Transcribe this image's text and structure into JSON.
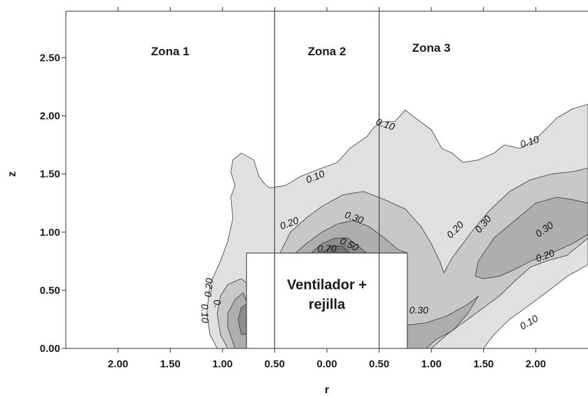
{
  "chart_data": {
    "type": "contour",
    "xlabel": "r",
    "ylabel": "z",
    "xlim": [
      -2.5,
      2.5
    ],
    "ylim": [
      0.0,
      2.9
    ],
    "x_ticks": [
      {
        "value": -2.0,
        "label": "2.00"
      },
      {
        "value": -1.5,
        "label": "1.50"
      },
      {
        "value": -1.0,
        "label": "1.00"
      },
      {
        "value": -0.5,
        "label": "0.50"
      },
      {
        "value": 0.0,
        "label": "0.00"
      },
      {
        "value": 0.5,
        "label": "0.50"
      },
      {
        "value": 1.0,
        "label": "1.00"
      },
      {
        "value": 1.5,
        "label": "1.50"
      },
      {
        "value": 2.0,
        "label": "2.00"
      }
    ],
    "y_ticks": [
      {
        "value": 0.0,
        "label": "0.00"
      },
      {
        "value": 0.5,
        "label": "0.50"
      },
      {
        "value": 1.0,
        "label": "1.00"
      },
      {
        "value": 1.5,
        "label": "1.50"
      },
      {
        "value": 2.0,
        "label": "2.00"
      },
      {
        "value": 2.5,
        "label": "2.50"
      }
    ],
    "zones": [
      {
        "label": "Zona 1",
        "x": -1.5,
        "y": 2.52
      },
      {
        "label": "Zona 2",
        "x": 0.0,
        "y": 2.52
      },
      {
        "label": "Zona 3",
        "x": 1.0,
        "y": 2.55
      }
    ],
    "zone_dividers": [
      -0.5,
      0.5
    ],
    "box": {
      "x0": -0.77,
      "x1": 0.77,
      "y0": 0.0,
      "y1": 0.82,
      "lines": [
        "Ventilador +",
        "rejilla"
      ]
    },
    "contour_levels": [
      {
        "level": 0.1,
        "fill": "#e0e0e0",
        "polygons": [
          [
            [
              -1.05,
              0.0
            ],
            [
              -1.12,
              0.12
            ],
            [
              -1.15,
              0.3
            ],
            [
              -1.12,
              0.55
            ],
            [
              -1.02,
              0.75
            ],
            [
              -0.95,
              0.92
            ],
            [
              -0.9,
              1.12
            ],
            [
              -0.92,
              1.3
            ],
            [
              -0.88,
              1.4
            ],
            [
              -0.92,
              1.52
            ],
            [
              -0.9,
              1.62
            ],
            [
              -0.82,
              1.68
            ],
            [
              -0.7,
              1.62
            ],
            [
              -0.65,
              1.48
            ],
            [
              -0.6,
              1.42
            ],
            [
              -0.55,
              1.38
            ],
            [
              -0.4,
              1.4
            ],
            [
              -0.25,
              1.48
            ],
            [
              -0.05,
              1.55
            ],
            [
              0.1,
              1.6
            ],
            [
              0.22,
              1.72
            ],
            [
              0.38,
              1.82
            ],
            [
              0.45,
              1.9
            ],
            [
              0.52,
              1.95
            ],
            [
              0.65,
              1.95
            ],
            [
              0.75,
              2.05
            ],
            [
              0.85,
              1.98
            ],
            [
              1.0,
              1.88
            ],
            [
              1.1,
              1.72
            ],
            [
              1.2,
              1.68
            ],
            [
              1.3,
              1.6
            ],
            [
              1.45,
              1.62
            ],
            [
              1.6,
              1.68
            ],
            [
              1.7,
              1.75
            ],
            [
              1.85,
              1.72
            ],
            [
              2.0,
              1.8
            ],
            [
              2.2,
              1.98
            ],
            [
              2.35,
              2.06
            ],
            [
              2.5,
              2.1
            ],
            [
              2.5,
              0.72
            ],
            [
              2.3,
              0.62
            ],
            [
              2.1,
              0.48
            ],
            [
              1.95,
              0.38
            ],
            [
              1.75,
              0.25
            ],
            [
              1.6,
              0.12
            ],
            [
              1.5,
              0.0
            ]
          ]
        ]
      },
      {
        "level": 0.2,
        "fill": "#c8c8c8",
        "polygons": [
          [
            [
              -0.95,
              0.0
            ],
            [
              -1.02,
              0.12
            ],
            [
              -1.05,
              0.3
            ],
            [
              -1.02,
              0.45
            ],
            [
              -0.95,
              0.55
            ],
            [
              -0.82,
              0.6
            ],
            [
              -0.75,
              0.55
            ],
            [
              -0.78,
              0.4
            ],
            [
              -0.78,
              0.0
            ]
          ],
          [
            [
              -0.45,
              0.82
            ],
            [
              -0.35,
              1.0
            ],
            [
              -0.2,
              1.12
            ],
            [
              -0.05,
              1.22
            ],
            [
              0.15,
              1.32
            ],
            [
              0.35,
              1.35
            ],
            [
              0.55,
              1.28
            ],
            [
              0.75,
              1.2
            ],
            [
              0.9,
              1.05
            ],
            [
              1.0,
              0.9
            ],
            [
              1.08,
              0.75
            ],
            [
              1.12,
              0.65
            ],
            [
              1.2,
              0.78
            ],
            [
              1.3,
              0.9
            ],
            [
              1.4,
              1.02
            ],
            [
              1.55,
              1.18
            ],
            [
              1.75,
              1.35
            ],
            [
              1.95,
              1.45
            ],
            [
              2.15,
              1.5
            ],
            [
              2.35,
              1.52
            ],
            [
              2.5,
              1.55
            ],
            [
              2.5,
              0.95
            ],
            [
              2.3,
              0.8
            ],
            [
              2.1,
              0.75
            ],
            [
              1.95,
              0.7
            ],
            [
              1.8,
              0.58
            ],
            [
              1.65,
              0.45
            ],
            [
              1.5,
              0.35
            ],
            [
              1.35,
              0.25
            ],
            [
              1.15,
              0.12
            ],
            [
              1.0,
              0.0
            ],
            [
              0.77,
              0.0
            ],
            [
              0.77,
              0.82
            ]
          ]
        ]
      },
      {
        "level": 0.3,
        "fill": "#aeaeae",
        "polygons": [
          [
            [
              -0.88,
              0.0
            ],
            [
              -0.95,
              0.18
            ],
            [
              -0.95,
              0.3
            ],
            [
              -0.88,
              0.42
            ],
            [
              -0.8,
              0.48
            ],
            [
              -0.77,
              0.4
            ],
            [
              -0.77,
              0.0
            ]
          ],
          [
            [
              -0.3,
              0.82
            ],
            [
              -0.2,
              0.9
            ],
            [
              -0.05,
              1.0
            ],
            [
              0.1,
              1.07
            ],
            [
              0.25,
              1.1
            ],
            [
              0.4,
              1.05
            ],
            [
              0.55,
              0.95
            ],
            [
              0.68,
              0.85
            ],
            [
              0.77,
              0.82
            ]
          ],
          [
            [
              0.77,
              0.0
            ],
            [
              0.77,
              0.2
            ],
            [
              0.95,
              0.22
            ],
            [
              1.15,
              0.28
            ],
            [
              1.35,
              0.38
            ],
            [
              1.45,
              0.45
            ],
            [
              1.35,
              0.3
            ],
            [
              1.2,
              0.15
            ],
            [
              1.05,
              0.08
            ],
            [
              0.95,
              0.0
            ]
          ],
          [
            [
              1.42,
              0.62
            ],
            [
              1.45,
              0.75
            ],
            [
              1.6,
              0.95
            ],
            [
              1.8,
              1.1
            ],
            [
              2.0,
              1.25
            ],
            [
              2.2,
              1.3
            ],
            [
              2.35,
              1.28
            ],
            [
              2.5,
              1.25
            ],
            [
              2.5,
              0.98
            ],
            [
              2.35,
              0.9
            ],
            [
              2.15,
              0.82
            ],
            [
              1.95,
              0.75
            ],
            [
              1.8,
              0.68
            ],
            [
              1.65,
              0.62
            ],
            [
              1.5,
              0.6
            ]
          ]
        ]
      },
      {
        "level": 0.5,
        "fill": "#8e8e8e",
        "polygons": [
          [
            [
              -0.82,
              0.12
            ],
            [
              -0.85,
              0.25
            ],
            [
              -0.82,
              0.35
            ],
            [
              -0.77,
              0.38
            ],
            [
              -0.77,
              0.12
            ]
          ],
          [
            [
              -0.15,
              0.82
            ],
            [
              -0.05,
              0.9
            ],
            [
              0.08,
              0.95
            ],
            [
              0.2,
              0.95
            ],
            [
              0.3,
              0.88
            ],
            [
              0.38,
              0.82
            ]
          ]
        ]
      },
      {
        "level": 0.7,
        "fill": "#707070",
        "polygons": [
          [
            [
              -0.05,
              0.82
            ],
            [
              0.05,
              0.88
            ],
            [
              0.15,
              0.88
            ],
            [
              0.22,
              0.82
            ]
          ]
        ]
      }
    ],
    "contour_labels": [
      {
        "text": "0.10",
        "x": 0.55,
        "y": 1.9,
        "angle": 18
      },
      {
        "text": "0.10",
        "x": 1.95,
        "y": 1.75,
        "angle": -18
      },
      {
        "text": "0.10",
        "x": -0.1,
        "y": 1.45,
        "angle": -22
      },
      {
        "text": "0.20",
        "x": -0.35,
        "y": 1.05,
        "angle": -20
      },
      {
        "text": "0.30",
        "x": 0.25,
        "y": 1.1,
        "angle": 20
      },
      {
        "text": "0.50",
        "x": 0.2,
        "y": 0.87,
        "angle": 25
      },
      {
        "text": "0.70",
        "x": 0.0,
        "y": 0.83,
        "angle": 0
      },
      {
        "text": "0.20",
        "x": 1.25,
        "y": 1.0,
        "angle": -45
      },
      {
        "text": "0.30",
        "x": 1.52,
        "y": 1.05,
        "angle": -50
      },
      {
        "text": "0.30",
        "x": 2.1,
        "y": 1.0,
        "angle": -35
      },
      {
        "text": "0.20",
        "x": 2.1,
        "y": 0.77,
        "angle": -20
      },
      {
        "text": "0.10",
        "x": 1.95,
        "y": 0.2,
        "angle": -30
      },
      {
        "text": "0.30",
        "x": 0.88,
        "y": 0.3,
        "angle": 0
      },
      {
        "text": "0.20",
        "x": -1.1,
        "y": 0.52,
        "angle": -85
      },
      {
        "text": "0.10",
        "x": -1.2,
        "y": 0.3,
        "angle": 88
      },
      {
        "text": "0.",
        "x": -1.08,
        "y": 0.38,
        "angle": 80
      }
    ]
  }
}
